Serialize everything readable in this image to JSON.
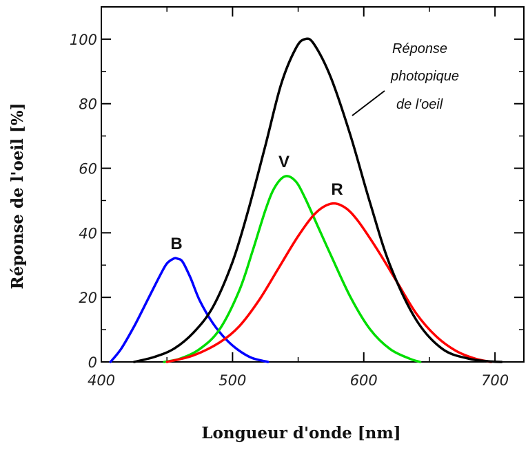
{
  "chart_data": {
    "type": "line",
    "title": "",
    "xlabel": "Longueur d'onde [nm]",
    "ylabel": "Réponse de l'oeil [%]",
    "xlim": [
      400,
      722
    ],
    "ylim": [
      0,
      110
    ],
    "xticks": [
      400,
      500,
      600,
      700
    ],
    "xtick_labels": [
      "400",
      "500",
      "600",
      "700"
    ],
    "yticks": [
      0,
      20,
      40,
      60,
      80,
      100
    ],
    "ytick_labels": [
      "0",
      "20",
      "40",
      "60",
      "80",
      "100"
    ],
    "grid": false,
    "series": [
      {
        "name": "B",
        "color": "#0000ff",
        "x": [
          407,
          415,
          425,
          435,
          445,
          450,
          455,
          458,
          462,
          468,
          475,
          485,
          495,
          505,
          515,
          527
        ],
        "y": [
          0,
          4,
          11,
          19,
          27,
          30.5,
          32,
          32,
          31,
          26,
          19,
          12,
          7,
          3.5,
          1.2,
          0
        ]
      },
      {
        "name": "V",
        "color": "#00dd00",
        "x": [
          448,
          460,
          475,
          490,
          505,
          515,
          525,
          532,
          540,
          548,
          555,
          565,
          575,
          590,
          605,
          620,
          635,
          643
        ],
        "y": [
          0,
          1,
          4,
          10,
          22,
          34,
          47,
          54,
          57.5,
          56,
          51,
          42,
          33,
          20,
          10,
          4,
          1,
          0
        ]
      },
      {
        "name": "R",
        "color": "#ff0000",
        "x": [
          450,
          470,
          490,
          505,
          520,
          535,
          550,
          563,
          575,
          585,
          595,
          610,
          625,
          640,
          655,
          670,
          685,
          697
        ],
        "y": [
          0,
          2,
          6,
          11,
          19,
          29,
          39,
          46,
          49,
          48,
          44,
          35,
          25,
          15,
          8,
          3.5,
          1,
          0
        ]
      },
      {
        "name": "Réponse photopique de l'oeil",
        "color": "#000000",
        "x": [
          425,
          440,
          455,
          470,
          485,
          500,
          512,
          525,
          537,
          548,
          555,
          562,
          575,
          590,
          605,
          620,
          640,
          660,
          680,
          695,
          705
        ],
        "y": [
          0,
          1.5,
          4,
          9,
          17,
          31,
          47,
          67,
          86,
          97,
          100,
          98.5,
          88,
          70,
          49,
          30,
          13,
          4,
          1,
          0.2,
          0
        ]
      }
    ],
    "annotations": {
      "curve_labels": [
        "B",
        "V",
        "R"
      ],
      "photopic_text": [
        "Réponse",
        "photopique",
        "de l'oeil"
      ]
    }
  }
}
